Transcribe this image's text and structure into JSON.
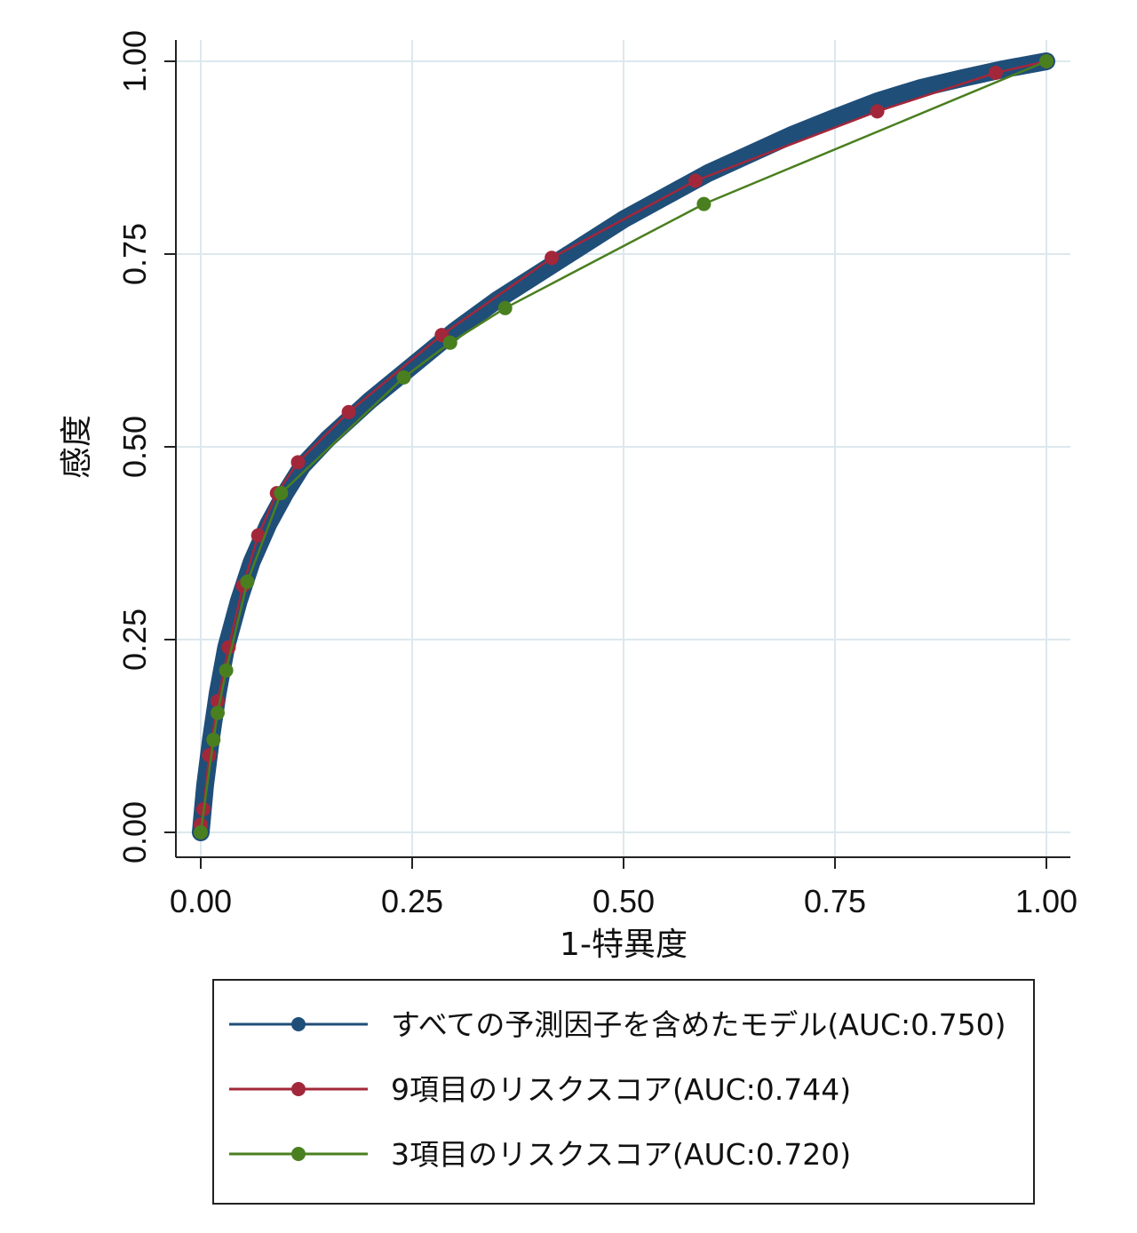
{
  "chart_data": {
    "type": "line",
    "xlabel": "1-特異度",
    "ylabel": "感度",
    "xlim": [
      0,
      1
    ],
    "ylim": [
      0,
      1
    ],
    "x_ticks": [
      "0.00",
      "0.25",
      "0.50",
      "0.75",
      "1.00"
    ],
    "y_ticks": [
      "0.00",
      "0.25",
      "0.50",
      "0.75",
      "1.00"
    ],
    "grid": true,
    "legend_position": "bottom",
    "series": [
      {
        "name": "すべての予測因子を含めたモデル(AUC:0.750)",
        "color": "#1f4e79",
        "dense_markers": true,
        "points": [
          [
            0,
            0
          ],
          [
            0.005,
            0.06
          ],
          [
            0.012,
            0.12
          ],
          [
            0.02,
            0.18
          ],
          [
            0.03,
            0.24
          ],
          [
            0.045,
            0.3
          ],
          [
            0.06,
            0.35
          ],
          [
            0.08,
            0.4
          ],
          [
            0.1,
            0.44
          ],
          [
            0.12,
            0.475
          ],
          [
            0.15,
            0.51
          ],
          [
            0.2,
            0.56
          ],
          [
            0.25,
            0.605
          ],
          [
            0.3,
            0.65
          ],
          [
            0.35,
            0.69
          ],
          [
            0.4,
            0.725
          ],
          [
            0.45,
            0.76
          ],
          [
            0.5,
            0.795
          ],
          [
            0.55,
            0.825
          ],
          [
            0.6,
            0.855
          ],
          [
            0.65,
            0.88
          ],
          [
            0.7,
            0.905
          ],
          [
            0.75,
            0.927
          ],
          [
            0.8,
            0.948
          ],
          [
            0.85,
            0.965
          ],
          [
            0.9,
            0.978
          ],
          [
            0.95,
            0.99
          ],
          [
            1,
            1
          ]
        ]
      },
      {
        "name": "9項目のリスクスコア(AUC:0.744)",
        "color": "#a3273a",
        "dense_markers": false,
        "points": [
          [
            0,
            0.01
          ],
          [
            0.003,
            0.03
          ],
          [
            0.01,
            0.1
          ],
          [
            0.02,
            0.17
          ],
          [
            0.033,
            0.24
          ],
          [
            0.05,
            0.32
          ],
          [
            0.068,
            0.385
          ],
          [
            0.09,
            0.44
          ],
          [
            0.115,
            0.48
          ],
          [
            0.175,
            0.545
          ],
          [
            0.285,
            0.645
          ],
          [
            0.415,
            0.745
          ],
          [
            0.585,
            0.845
          ],
          [
            0.8,
            0.935
          ],
          [
            0.94,
            0.985
          ],
          [
            1,
            1
          ]
        ]
      },
      {
        "name": "3項目のリスクスコア(AUC:0.720)",
        "color": "#4a7f1f",
        "dense_markers": false,
        "points": [
          [
            0,
            0
          ],
          [
            0.015,
            0.12
          ],
          [
            0.02,
            0.155
          ],
          [
            0.03,
            0.21
          ],
          [
            0.055,
            0.325
          ],
          [
            0.095,
            0.44
          ],
          [
            0.24,
            0.59
          ],
          [
            0.295,
            0.635
          ],
          [
            0.36,
            0.68
          ],
          [
            0.595,
            0.815
          ],
          [
            1,
            1
          ]
        ]
      }
    ]
  }
}
